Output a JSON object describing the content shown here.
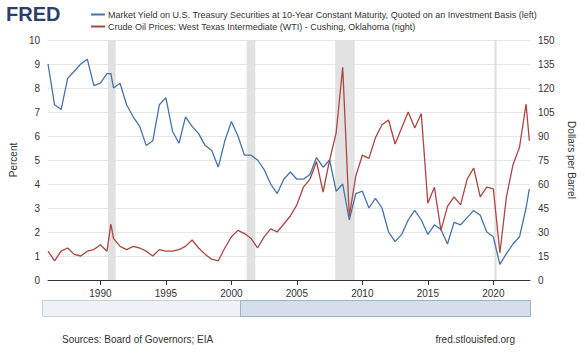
{
  "logo": "FRED",
  "sources": "Sources: Board of Governors; EIA",
  "site": "fred.stlouisfed.org",
  "chart_data": {
    "type": "line",
    "legend": "top",
    "grid": true,
    "y_label": "Percent",
    "y2_label": "Dollars per Barrel",
    "xlim": [
      1986,
      2022.8
    ],
    "xticks": [
      1990,
      1995,
      2000,
      2005,
      2010,
      2015,
      2020
    ],
    "ylim": [
      0,
      10
    ],
    "yticks": [
      0,
      1,
      2,
      3,
      4,
      5,
      6,
      7,
      8,
      9,
      10
    ],
    "y2lim": [
      0,
      150
    ],
    "y2ticks": [
      0,
      15,
      30,
      45,
      60,
      75,
      90,
      105,
      120,
      135,
      150
    ],
    "recessions": [
      [
        1990.58,
        1991.17
      ],
      [
        2001.17,
        2001.83
      ],
      [
        2007.92,
        2009.42
      ],
      [
        2020.08,
        2020.25
      ]
    ],
    "x": [
      1986,
      1986.5,
      1987,
      1987.5,
      1988,
      1988.5,
      1989,
      1989.5,
      1990,
      1990.5,
      1990.8,
      1991,
      1991.5,
      1992,
      1992.5,
      1993,
      1993.5,
      1994,
      1994.5,
      1995,
      1995.5,
      1996,
      1996.5,
      1997,
      1997.5,
      1998,
      1998.5,
      1999,
      1999.5,
      2000,
      2000.5,
      2001,
      2001.5,
      2002,
      2002.5,
      2003,
      2003.5,
      2004,
      2004.5,
      2005,
      2005.5,
      2006,
      2006.5,
      2007,
      2007.5,
      2008,
      2008.5,
      2009,
      2009.5,
      2010,
      2010.5,
      2011,
      2011.5,
      2012,
      2012.5,
      2013,
      2013.5,
      2014,
      2014.5,
      2015,
      2015.5,
      2016,
      2016.5,
      2017,
      2017.5,
      2018,
      2018.5,
      2019,
      2019.5,
      2020,
      2020.5,
      2021,
      2021.5,
      2022,
      2022.5,
      2022.75
    ],
    "series": [
      {
        "name": "Market Yield on U.S. Treasury Securities at 10-Year Constant Maturity, Quoted on an Investment Basis (left)",
        "color": "#4572a7",
        "axis": "y",
        "values": [
          9.0,
          7.3,
          7.1,
          8.4,
          8.7,
          9.0,
          9.2,
          8.1,
          8.2,
          8.6,
          8.6,
          8.0,
          8.2,
          7.3,
          6.8,
          6.4,
          5.6,
          5.8,
          7.3,
          7.6,
          6.2,
          5.7,
          6.8,
          6.4,
          6.1,
          5.6,
          5.4,
          4.7,
          5.8,
          6.6,
          6.0,
          5.2,
          5.2,
          5.0,
          4.6,
          4.0,
          3.6,
          4.2,
          4.5,
          4.2,
          4.2,
          4.4,
          5.1,
          4.7,
          5.0,
          3.7,
          4.0,
          2.5,
          3.6,
          3.7,
          3.0,
          3.4,
          3.0,
          2.0,
          1.6,
          1.9,
          2.5,
          2.9,
          2.5,
          1.9,
          2.3,
          2.1,
          1.5,
          2.4,
          2.3,
          2.6,
          2.9,
          2.7,
          2.0,
          1.8,
          0.65,
          1.1,
          1.5,
          1.8,
          3.0,
          3.8
        ]
      },
      {
        "name": "Crude Oil Prices: West Texas Intermediate (WTI) - Cushing, Oklahoma (right)",
        "color": "#aa4643",
        "axis": "y2",
        "values": [
          18,
          12,
          18,
          20,
          16,
          15,
          18,
          19,
          22,
          18,
          35,
          26,
          21,
          19,
          21,
          20,
          18,
          15,
          19,
          18,
          18,
          19,
          21,
          25,
          20,
          16,
          13,
          12,
          20,
          27,
          31,
          29,
          26,
          20,
          27,
          32,
          30,
          35,
          40,
          47,
          58,
          63,
          74,
          55,
          75,
          92,
          133,
          40,
          65,
          78,
          76,
          89,
          97,
          100,
          85,
          95,
          105,
          95,
          104,
          48,
          58,
          31,
          46,
          52,
          47,
          63,
          70,
          52,
          58,
          57,
          17,
          52,
          72,
          83,
          110,
          87
        ]
      }
    ]
  }
}
